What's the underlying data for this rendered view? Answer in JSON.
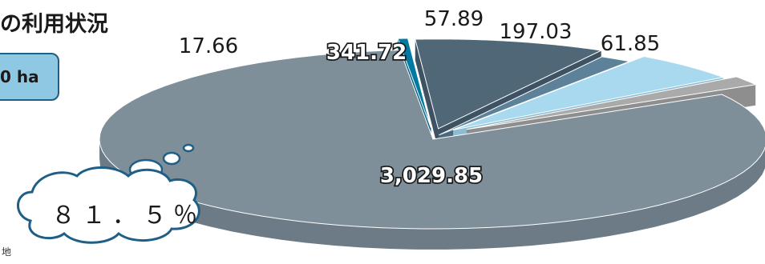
{
  "page": {
    "title_fragment": "の利用状況",
    "area_fragment": "0 ha",
    "note_fragment": "地",
    "callout": "８１．５％"
  },
  "chart_data": {
    "type": "pie",
    "style": "3d-exploded",
    "title": "",
    "slices": [
      {
        "value": 3029.85,
        "label": "3,029.85",
        "color": "#7f8f99",
        "side": "#6c7b85"
      },
      {
        "value": 17.66,
        "label": "17.66",
        "color": "#0079a3",
        "side": "#005f82"
      },
      {
        "value": 341.72,
        "label": "341.72",
        "color": "#4f6777",
        "side": "#3d5262"
      },
      {
        "value": 57.89,
        "label": "57.89",
        "color": "#5c8198",
        "side": "#4a6a7e"
      },
      {
        "value": 197.03,
        "label": "197.03",
        "color": "#a8d9ee",
        "side": "#8cbdd2"
      },
      {
        "value": 61.85,
        "label": "61.85",
        "color": "#aaaaaa",
        "side": "#8e8e8e"
      }
    ]
  }
}
